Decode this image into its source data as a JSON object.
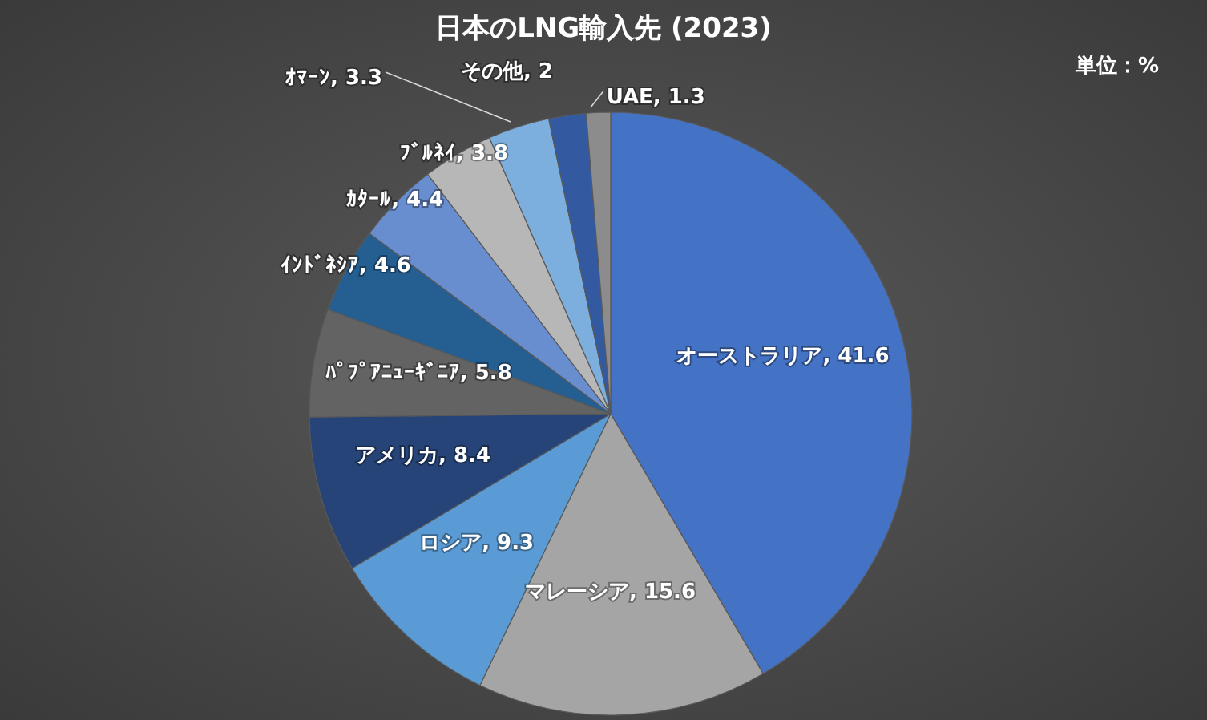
{
  "chart_data": {
    "type": "pie",
    "title": "日本のLNG輸入先 (2023)",
    "annotations": [
      "単位：%"
    ],
    "categories": [
      "オーストラリア",
      "マレーシア",
      "ロシア",
      "アメリカ",
      "ﾊﾟﾌﾟｱﾆｭｰｷﾞﾆｱ",
      "ｲﾝﾄﾞﾈｼｱ",
      "ｶﾀｰﾙ",
      "ﾌﾞﾙﾈｲ",
      "ｵﾏｰﾝ",
      "その他",
      "UAE"
    ],
    "values": [
      41.6,
      15.6,
      9.3,
      8.4,
      5.8,
      4.6,
      4.4,
      3.8,
      3.3,
      2,
      1.3
    ],
    "colors": [
      "#4472c4",
      "#a5a5a5",
      "#5b9bd5",
      "#264478",
      "#636363",
      "#255e91",
      "#698ed0",
      "#b7b7b7",
      "#7cafdd",
      "#335aa1",
      "#8c8c8c"
    ],
    "value_labels": [
      ", 41.6",
      ", 15.6",
      ", 9.3",
      ", 8.4",
      ", 5.8",
      ", 4.6",
      ", 4.4",
      ", 3.8",
      ", 3.3",
      ", 2",
      ", 1.3"
    ]
  }
}
